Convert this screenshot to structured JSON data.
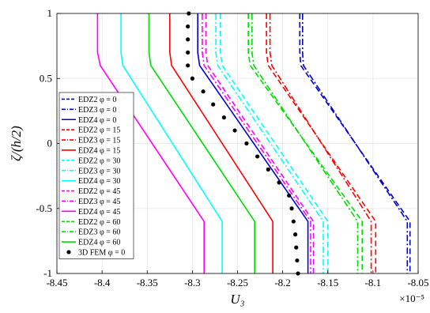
{
  "chart_data": {
    "type": "line",
    "xlabel": "U₃",
    "ylabel": "ζ/(h/2)",
    "x_multiplier": "×10⁻⁵",
    "xlim": [
      -8.45,
      -8.05
    ],
    "ylim": [
      -1,
      1
    ],
    "xticks": [
      -8.45,
      -8.4,
      -8.35,
      -8.3,
      -8.25,
      -8.2,
      -8.15,
      -8.1,
      -8.05
    ],
    "xtick_labels": [
      "-8.45",
      "-8.4",
      "-8.35",
      "-8.3",
      "-8.25",
      "-8.2",
      "-8.15",
      "-8.1",
      "-8.05"
    ],
    "yticks": [
      1,
      0.5,
      0,
      -0.5,
      -1
    ],
    "ytick_labels": [
      "1",
      "0.5",
      "0",
      "-0.5",
      "-1"
    ],
    "grid": true,
    "legend_position": "left-middle",
    "series": [
      {
        "name": "EDZ2 φ = 0",
        "color": "#0000cc",
        "dash": "dashed",
        "x": [
          -8.181,
          -8.181,
          -8.18,
          -8.059,
          -8.059
        ],
        "y": [
          1,
          0.7,
          0.6,
          -0.6,
          -1
        ]
      },
      {
        "name": "EDZ3 φ = 0",
        "color": "#0000cc",
        "dash": "dashdot",
        "x": [
          -8.178,
          -8.178,
          -8.177,
          -8.062,
          -8.062
        ],
        "y": [
          1,
          0.7,
          0.6,
          -0.6,
          -1
        ]
      },
      {
        "name": "EDZ4 φ = 0",
        "color": "#0000cc",
        "dash": "solid",
        "x": [
          -8.294,
          -8.294,
          -8.292,
          -8.172,
          -8.172
        ],
        "y": [
          1,
          0.7,
          0.6,
          -0.6,
          -1
        ]
      },
      {
        "name": "EDZ2 φ = 15",
        "color": "#ff0000",
        "dash": "dashed",
        "x": [
          -8.218,
          -8.218,
          -8.216,
          -8.097,
          -8.097
        ],
        "y": [
          1,
          0.7,
          0.6,
          -0.6,
          -1
        ]
      },
      {
        "name": "EDZ3 φ = 15",
        "color": "#ff0000",
        "dash": "dashdot",
        "x": [
          -8.214,
          -8.214,
          -8.212,
          -8.102,
          -8.102
        ],
        "y": [
          1,
          0.7,
          0.6,
          -0.6,
          -1
        ]
      },
      {
        "name": "EDZ4 φ = 15",
        "color": "#ff0000",
        "dash": "solid",
        "x": [
          -8.325,
          -8.325,
          -8.323,
          -8.211,
          -8.211
        ],
        "y": [
          1,
          0.7,
          0.6,
          -0.6,
          -1
        ]
      },
      {
        "name": "EDZ2 φ = 30",
        "color": "#00ffff",
        "dash": "dashed",
        "x": [
          -8.269,
          -8.269,
          -8.267,
          -8.15,
          -8.15
        ],
        "y": [
          1,
          0.7,
          0.6,
          -0.6,
          -1
        ]
      },
      {
        "name": "EDZ3 φ = 30",
        "color": "#00ffff",
        "dash": "dashdot",
        "x": [
          -8.274,
          -8.274,
          -8.272,
          -8.155,
          -8.155
        ],
        "y": [
          1,
          0.7,
          0.6,
          -0.6,
          -1
        ]
      },
      {
        "name": "EDZ4 φ = 30",
        "color": "#00ffff",
        "dash": "solid",
        "x": [
          -8.379,
          -8.379,
          -8.377,
          -8.267,
          -8.267
        ],
        "y": [
          1,
          0.7,
          0.6,
          -0.6,
          -1
        ]
      },
      {
        "name": "EDZ2 φ = 45",
        "color": "#ff00ff",
        "dash": "dashed",
        "x": [
          -8.285,
          -8.285,
          -8.283,
          -8.166,
          -8.166
        ],
        "y": [
          1,
          0.7,
          0.6,
          -0.6,
          -1
        ]
      },
      {
        "name": "EDZ3 φ = 45",
        "color": "#ff00ff",
        "dash": "dashdot",
        "x": [
          -8.289,
          -8.289,
          -8.287,
          -8.169,
          -8.169
        ],
        "y": [
          1,
          0.7,
          0.6,
          -0.6,
          -1
        ]
      },
      {
        "name": "EDZ4 φ = 45",
        "color": "#ff00ff",
        "dash": "solid",
        "x": [
          -8.405,
          -8.405,
          -8.402,
          -8.287,
          -8.287
        ],
        "y": [
          1,
          0.7,
          0.6,
          -0.6,
          -1
        ]
      },
      {
        "name": "EDZ2 φ = 60",
        "color": "#00dd00",
        "dash": "dashed",
        "x": [
          -8.238,
          -8.238,
          -8.236,
          -8.112,
          -8.112
        ],
        "y": [
          1,
          0.7,
          0.6,
          -0.6,
          -1
        ]
      },
      {
        "name": "EDZ3 φ = 60",
        "color": "#00dd00",
        "dash": "dashdot",
        "x": [
          -8.234,
          -8.234,
          -8.232,
          -8.117,
          -8.117
        ],
        "y": [
          1,
          0.7,
          0.6,
          -0.6,
          -1
        ]
      },
      {
        "name": "EDZ4 φ = 60",
        "color": "#00dd00",
        "dash": "solid",
        "x": [
          -8.348,
          -8.348,
          -8.346,
          -8.231,
          -8.231
        ],
        "y": [
          1,
          0.7,
          0.6,
          -0.6,
          -1
        ]
      },
      {
        "name": "3D FEM φ = 0",
        "color": "#000000",
        "dash": "markers",
        "x": [
          -8.304,
          -8.305,
          -8.305,
          -8.305,
          -8.305,
          -8.3,
          -8.288,
          -8.277,
          -8.265,
          -8.253,
          -8.24,
          -8.228,
          -8.216,
          -8.204,
          -8.193,
          -8.19,
          -8.188,
          -8.186,
          -8.185,
          -8.184,
          -8.183
        ],
        "y": [
          1,
          0.9,
          0.8,
          0.7,
          0.6,
          0.5,
          0.4,
          0.3,
          0.2,
          0.1,
          0.0,
          -0.1,
          -0.2,
          -0.3,
          -0.4,
          -0.5,
          -0.6,
          -0.7,
          -0.8,
          -0.9,
          -1.0
        ]
      }
    ]
  }
}
